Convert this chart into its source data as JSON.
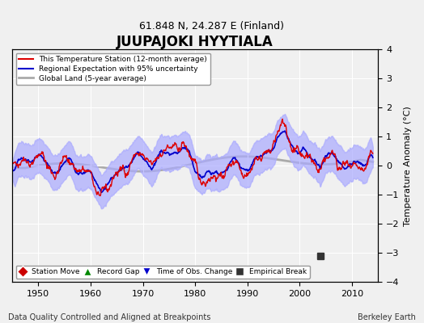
{
  "title": "JUUPAJOKI HYYTIALA",
  "subtitle": "61.848 N, 24.287 E (Finland)",
  "ylabel": "Temperature Anomaly (°C)",
  "xlabel_left": "Data Quality Controlled and Aligned at Breakpoints",
  "xlabel_right": "Berkeley Earth",
  "ylim": [
    -4,
    4
  ],
  "xlim": [
    1945,
    2015
  ],
  "xticks": [
    1950,
    1960,
    1970,
    1980,
    1990,
    2000,
    2010
  ],
  "yticks": [
    -4,
    -3,
    -2,
    -1,
    0,
    1,
    2,
    3,
    4
  ],
  "empirical_break_year": 2004,
  "empirical_break_value": -3.1,
  "background_color": "#f0f0f0",
  "plot_background": "#f0f0f0",
  "grid_color": "#ffffff",
  "station_line_color": "#dd0000",
  "regional_line_color": "#0000cc",
  "regional_fill_color": "#aaaaff",
  "global_line_color": "#aaaaaa",
  "legend_items": [
    {
      "label": "This Temperature Station (12-month average)",
      "color": "#dd0000",
      "lw": 1.5
    },
    {
      "label": "Regional Expectation with 95% uncertainty",
      "color": "#0000cc",
      "lw": 1.5
    },
    {
      "label": "Global Land (5-year average)",
      "color": "#aaaaaa",
      "lw": 2.0
    }
  ],
  "marker_legend": [
    {
      "label": "Station Move",
      "color": "#cc0000",
      "marker": "D"
    },
    {
      "label": "Record Gap",
      "color": "#008800",
      "marker": "^"
    },
    {
      "label": "Time of Obs. Change",
      "color": "#0000cc",
      "marker": "v"
    },
    {
      "label": "Empirical Break",
      "color": "#333333",
      "marker": "s"
    }
  ]
}
